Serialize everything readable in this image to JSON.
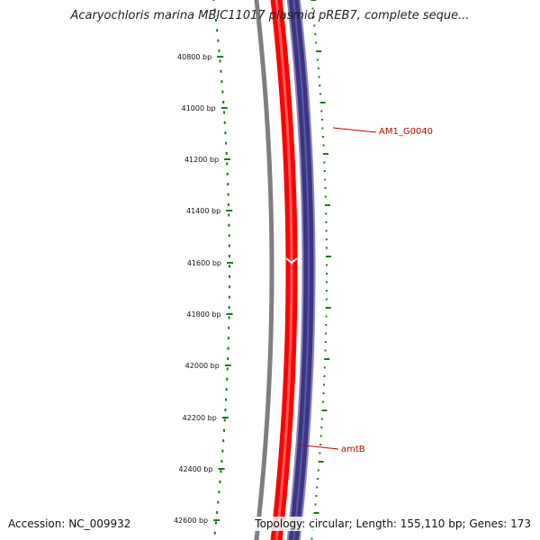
{
  "title": "Acaryochloris marina MBIC11017 plasmid pREB7, complete seque...",
  "footer": {
    "accession": "Accession: NC_009932",
    "topology": "Topology: circular; Length: 155,110 bp; Genes: 173"
  },
  "ruler": {
    "ticks": [
      "40800 bp",
      "41000 bp",
      "41200 bp",
      "41400 bp",
      "41600 bp",
      "41800 bp",
      "42000 bp",
      "42200 bp",
      "42400 bp",
      "42600 bp"
    ]
  },
  "genes": [
    {
      "label": "AM1_G0040",
      "strand": "forward"
    },
    {
      "label": "amtB",
      "strand": "reverse"
    }
  ],
  "colors": {
    "forward_strand": "#ff0000",
    "reverse_strand": "#3c3580",
    "backbone": "#7f7f7f",
    "ruler_ticks": "#1a7a1a",
    "gene_label": "#cc0000"
  }
}
